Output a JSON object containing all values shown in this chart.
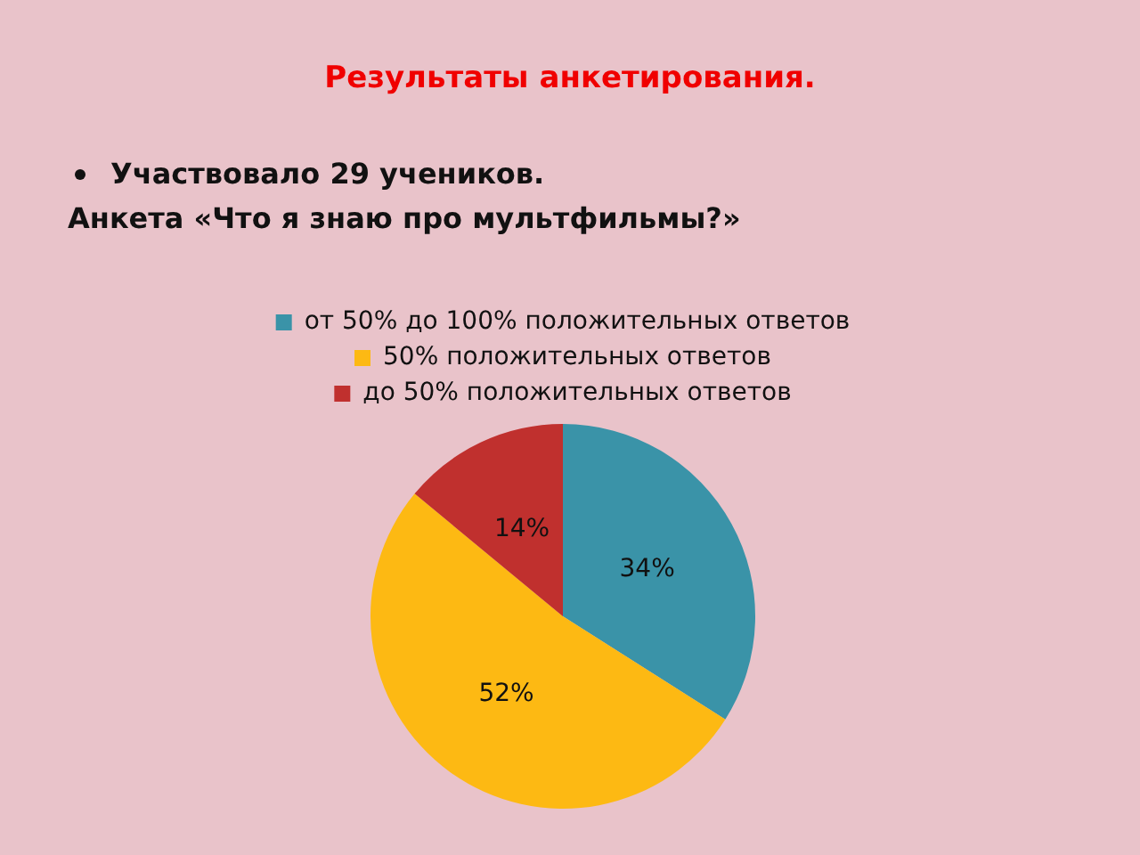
{
  "chart_data": {
    "type": "pie",
    "title": "Результаты анкетирования.",
    "annotations": [
      "Участвовало 29 учеников.",
      "Анкета «Что я знаю про мультфильмы?»"
    ],
    "categories": [
      "от 50% до 100% положительных ответов",
      "50% положительных ответов",
      "до 50% положительных ответов"
    ],
    "values": [
      34,
      52,
      14
    ],
    "value_labels": [
      "34%",
      "52%",
      "14%"
    ],
    "colors": [
      "#3a93a8",
      "#fdb913",
      "#c0302e"
    ],
    "legend": "top"
  }
}
